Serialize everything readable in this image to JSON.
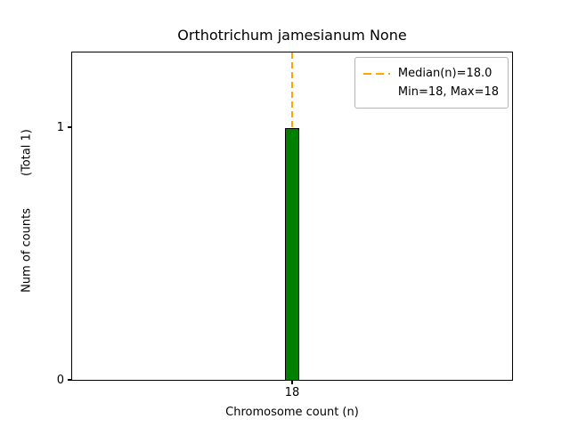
{
  "title": "Orthotrichum jamesianum None",
  "axes": {
    "xlabel": "Chromosome count (n)",
    "ylabel": "Num of counts",
    "total_label": "(Total 1)",
    "x_ticks": [
      "18"
    ],
    "y_ticks": [
      "0",
      "1"
    ]
  },
  "legend": {
    "median_label": "Median(n)=18.0",
    "minmax_label": "Min=18, Max=18"
  },
  "chart_data": {
    "type": "bar",
    "title": "Orthotrichum jamesianum None",
    "xlabel": "Chromosome count (n)",
    "ylabel": "Num of counts (Total 1)",
    "categories": [
      18
    ],
    "values": [
      1
    ],
    "total_counts": 1,
    "ylim": [
      0,
      1.3
    ],
    "xtick_labels": [
      "18"
    ],
    "ytick_labels": [
      "0",
      "1"
    ],
    "median_n": 18.0,
    "min_n": 18,
    "max_n": 18,
    "bar_color": "#008000",
    "bar_edge_color": "#000000",
    "median_line_color": "#FFA500",
    "median_line_style": "dashed",
    "legend_position": "upper right",
    "legend_entries": [
      "Median(n)=18.0",
      "Min=18, Max=18"
    ],
    "grid": false,
    "background_color": "#ffffff"
  }
}
